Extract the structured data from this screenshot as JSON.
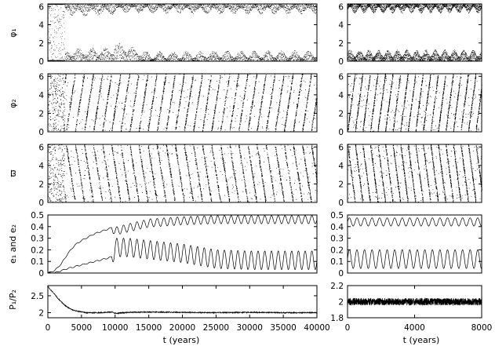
{
  "chart_data": [
    {
      "type": "scatter",
      "panel": "phi1-left",
      "ylabel": "φ₁",
      "xlim": [
        0,
        40000
      ],
      "ylim": [
        0,
        6.28
      ],
      "yticks": [
        0,
        2,
        4,
        6
      ],
      "series": [
        {
          "band": "upper",
          "x": [
            0,
            2000,
            5000,
            9500,
            10000,
            15000,
            25000,
            40000
          ],
          "y": [
            6.0,
            5.4,
            5.3,
            5.4,
            5.6,
            5.6,
            5.5,
            5.5
          ]
        },
        {
          "band": "lower",
          "x": [
            0,
            2000,
            5000,
            9500,
            10000,
            15000,
            25000,
            40000
          ],
          "y": [
            0.3,
            0.8,
            1.0,
            1.0,
            1.6,
            0.6,
            0.7,
            0.7
          ]
        }
      ]
    },
    {
      "type": "scatter",
      "panel": "phi1-right",
      "xlim": [
        0,
        8000
      ],
      "ylim": [
        0,
        6.28
      ],
      "yticks": [
        0,
        2,
        4,
        6
      ],
      "series": [
        {
          "band": "upper",
          "x": [
            0,
            8000
          ],
          "y": [
            5.6,
            5.6
          ]
        },
        {
          "band": "lower",
          "x": [
            0,
            8000
          ],
          "y": [
            0.8,
            0.8
          ]
        }
      ]
    },
    {
      "type": "scatter",
      "panel": "phi2-left",
      "ylabel": "φ₂",
      "xlim": [
        0,
        40000
      ],
      "ylim": [
        0,
        6.28
      ],
      "yticks": [
        0,
        2,
        4,
        6
      ],
      "series": [
        {
          "name": "",
          "x": [
            0,
            40000
          ],
          "y": [
            0,
            6.28
          ]
        }
      ]
    },
    {
      "type": "scatter",
      "panel": "phi2-right",
      "xlim": [
        0,
        8000
      ],
      "ylim": [
        0,
        6.28
      ],
      "yticks": [
        0,
        2,
        4,
        6
      ],
      "series": [
        {
          "name": "",
          "x": [
            0,
            8000
          ],
          "y": [
            0,
            6.28
          ]
        }
      ]
    },
    {
      "type": "scatter",
      "panel": "varpi-left",
      "ylabel": "ϖ",
      "xlim": [
        0,
        40000
      ],
      "ylim": [
        0,
        6.28
      ],
      "yticks": [
        0,
        2,
        4,
        6
      ],
      "series": [
        {
          "name": "",
          "x": [
            0,
            40000
          ],
          "y": [
            0,
            6.28
          ]
        }
      ]
    },
    {
      "type": "scatter",
      "panel": "varpi-right",
      "xlim": [
        0,
        8000
      ],
      "ylim": [
        0,
        6.28
      ],
      "yticks": [
        0,
        2,
        4,
        6
      ],
      "series": [
        {
          "name": "",
          "x": [
            0,
            8000
          ],
          "y": [
            0,
            6.28
          ]
        }
      ]
    },
    {
      "type": "line",
      "panel": "ecc-left",
      "ylabel": "e₁ and e₂",
      "xlim": [
        0,
        40000
      ],
      "ylim": [
        0,
        0.5
      ],
      "yticks": [
        0,
        0.1,
        0.2,
        0.3,
        0.4,
        0.5
      ],
      "series": [
        {
          "x": [
            0,
            1000,
            2000,
            3000,
            4000,
            5000,
            6000,
            7000,
            8000,
            9000,
            9500,
            10000,
            12000,
            15000,
            20000,
            25000,
            30000,
            40000
          ],
          "y": [
            0.0,
            0.02,
            0.08,
            0.17,
            0.24,
            0.28,
            0.31,
            0.34,
            0.36,
            0.38,
            0.39,
            0.36,
            0.39,
            0.43,
            0.45,
            0.46,
            0.46,
            0.46
          ]
        },
        {
          "x": [
            0,
            1000,
            2000,
            3000,
            5000,
            7000,
            9000,
            9500,
            10000,
            12000,
            15000,
            20000,
            25000,
            30000,
            40000
          ],
          "y": [
            0.0,
            0.0,
            0.02,
            0.04,
            0.07,
            0.1,
            0.13,
            0.14,
            0.22,
            0.22,
            0.2,
            0.17,
            0.12,
            0.11,
            0.11
          ]
        }
      ]
    },
    {
      "type": "line",
      "panel": "ecc-right",
      "xlim": [
        0,
        8000
      ],
      "ylim": [
        0,
        0.5
      ],
      "yticks": [
        0,
        0.1,
        0.2,
        0.3,
        0.4,
        0.5
      ],
      "series": [
        {
          "x": [
            0,
            8000
          ],
          "y": [
            0.44,
            0.44
          ]
        },
        {
          "x": [
            0,
            8000
          ],
          "y": [
            0.12,
            0.12
          ]
        }
      ]
    },
    {
      "type": "line",
      "panel": "ratio-left",
      "ylabel": "P₁/P₂",
      "xlabel": "t (years)",
      "xlim": [
        0,
        40000
      ],
      "ylim": [
        1.85,
        2.8
      ],
      "yticks": [
        2,
        2.5
      ],
      "xticks": [
        0,
        5000,
        10000,
        15000,
        20000,
        25000,
        30000,
        35000,
        40000
      ],
      "series": [
        {
          "x": [
            0,
            500,
            1000,
            1500,
            2000,
            2500,
            3000,
            3500,
            4000,
            5000,
            6000,
            8000,
            9500,
            10000,
            12000,
            15000,
            20000,
            25000,
            30000,
            35000,
            40000
          ],
          "y": [
            2.78,
            2.65,
            2.55,
            2.42,
            2.32,
            2.22,
            2.15,
            2.1,
            2.06,
            2.02,
            2.0,
            2.0,
            2.02,
            1.98,
            2.01,
            2.02,
            2.01,
            2.0,
            2.01,
            2.0,
            2.0
          ]
        }
      ]
    },
    {
      "type": "line",
      "panel": "ratio-right",
      "xlabel": "t (years)",
      "xlim": [
        0,
        8000
      ],
      "ylim": [
        1.8,
        2.2
      ],
      "yticks": [
        1.8,
        2,
        2.2
      ],
      "xticks": [
        0,
        4000,
        8000
      ],
      "series": [
        {
          "x": [
            0,
            8000
          ],
          "y": [
            2.0,
            2.0
          ]
        }
      ]
    }
  ],
  "labels": {
    "ylabel_phi1": "φ₁",
    "ylabel_phi2": "φ₂",
    "ylabel_varpi": "ϖ",
    "ylabel_ecc": "e₁ and e₂",
    "ylabel_ratio": "P₁/P₂",
    "xlabel": "t (years)"
  }
}
